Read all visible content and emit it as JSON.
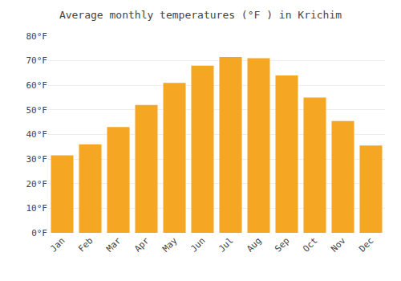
{
  "chart_data": {
    "type": "bar",
    "title": "Average monthly temperatures (°F ) in Krichim",
    "categories": [
      "Jan",
      "Feb",
      "Mar",
      "Apr",
      "May",
      "Jun",
      "Jul",
      "Aug",
      "Sep",
      "Oct",
      "Nov",
      "Dec"
    ],
    "values": [
      31.5,
      36,
      43,
      52,
      61,
      68,
      71.5,
      71,
      64,
      55,
      45.5,
      35.5
    ],
    "color": "#F5A623",
    "ylim": [
      0,
      80
    ],
    "yticks": [
      {
        "value": 0,
        "label": "0°F"
      },
      {
        "value": 10,
        "label": "10°F"
      },
      {
        "value": 20,
        "label": "20°F"
      },
      {
        "value": 30,
        "label": "30°F"
      },
      {
        "value": 40,
        "label": "40°F"
      },
      {
        "value": 50,
        "label": "50°F"
      },
      {
        "value": 60,
        "label": "60°F"
      },
      {
        "value": 70,
        "label": "70°F"
      },
      {
        "value": 80,
        "label": "80°F"
      }
    ],
    "grid": true
  }
}
